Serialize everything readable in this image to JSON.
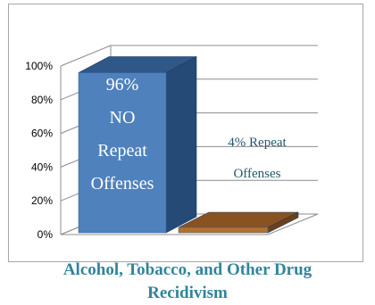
{
  "chart_data": {
    "type": "bar",
    "style": "3d-column",
    "categories": [
      "NO Repeat Offenses",
      "Repeat Offenses"
    ],
    "values": [
      96,
      4
    ],
    "ylim": [
      0,
      100
    ],
    "ytick_labels": [
      "0%",
      "20%",
      "40%",
      "60%",
      "80%",
      "100%"
    ],
    "bar_labels": [
      [
        "96%",
        "NO",
        "Repeat",
        "Offenses"
      ],
      [
        "4% Repeat",
        "Offenses"
      ]
    ],
    "colors": [
      "#4f81bd",
      "#b5702a"
    ],
    "grid": true,
    "title_lines": [
      "Alcohol, Tobacco, and Other Drug",
      "Recidivism"
    ]
  }
}
